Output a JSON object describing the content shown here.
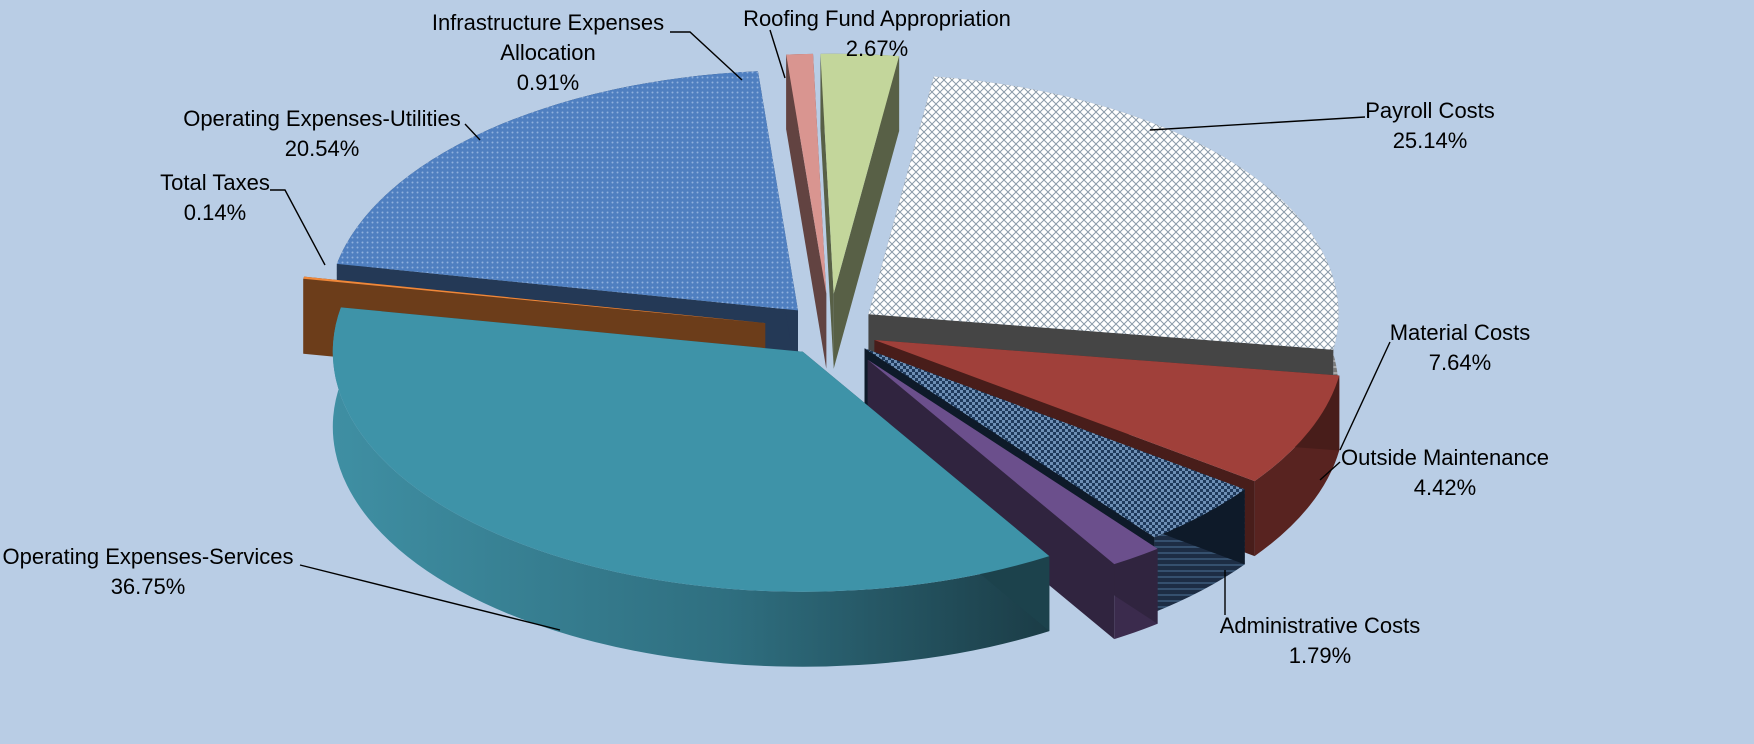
{
  "chart_data": {
    "type": "pie",
    "title": "",
    "legend": "none",
    "units": "%",
    "slices": [
      {
        "label": "Payroll Costs",
        "value": 25.14,
        "value_text": "25.14%",
        "color": "#ffffff",
        "pattern": "crosshatch"
      },
      {
        "label": "Material Costs",
        "value": 7.64,
        "value_text": "7.64%",
        "color": "#a0403a",
        "pattern": "solid"
      },
      {
        "label": "Outside Maintenance",
        "value": 4.42,
        "value_text": "4.42%",
        "color": "#1f3a5c",
        "pattern": "checker"
      },
      {
        "label": "Administrative Costs",
        "value": 1.79,
        "value_text": "1.79%",
        "color": "#6b4f8c",
        "pattern": "solid"
      },
      {
        "label": "Operating Expenses-Services",
        "value": 36.75,
        "value_text": "36.75%",
        "color": "#3e93a8",
        "pattern": "solid"
      },
      {
        "label": "Total Taxes",
        "value": 0.14,
        "value_text": "0.14%",
        "color": "#f0883a",
        "pattern": "solid"
      },
      {
        "label": "Operating Expenses-Utilities",
        "value": 20.54,
        "value_text": "20.54%",
        "color": "#4f7fc0",
        "pattern": "dots"
      },
      {
        "label": "Infrastructure Expenses Allocation",
        "label_lines": [
          "Infrastructure Expenses",
          "Allocation"
        ],
        "value": 0.91,
        "value_text": "0.91%",
        "color": "#d99590",
        "pattern": "solid"
      },
      {
        "label": "Roofing Fund Appropriation",
        "value": 2.67,
        "value_text": "2.67%",
        "color": "#c3d69b",
        "pattern": "solid"
      }
    ]
  }
}
